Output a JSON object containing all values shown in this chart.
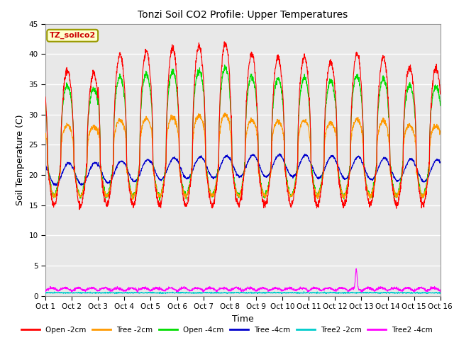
{
  "title": "Tonzi Soil CO2 Profile: Upper Temperatures",
  "xlabel": "Time",
  "ylabel": "Soil Temperature (C)",
  "watermark": "TZ_soilco2",
  "ylim": [
    0,
    45
  ],
  "xlim": [
    0,
    15
  ],
  "yticks": [
    0,
    5,
    10,
    15,
    20,
    25,
    30,
    35,
    40,
    45
  ],
  "xtick_labels": [
    "Oct 1",
    "Oct 2",
    "Oct 3",
    "Oct 4",
    "Oct 5",
    "Oct 6",
    "Oct 7",
    "Oct 8",
    "Oct 9",
    "Oct 10",
    "Oct 11",
    "Oct 12",
    "Oct 13",
    "Oct 14",
    "Oct 15",
    "Oct 16"
  ],
  "colors": {
    "Open -2cm": "#ff0000",
    "Tree -2cm": "#ff9900",
    "Open -4cm": "#00dd00",
    "Tree -4cm": "#0000cc",
    "Tree2 -2cm": "#00cccc",
    "Tree2 -4cm": "#ff00ff"
  },
  "plot_bg_upper": "#e8e8e8",
  "plot_bg_lower": "#d0d0d0",
  "grid_color": "#ffffff"
}
